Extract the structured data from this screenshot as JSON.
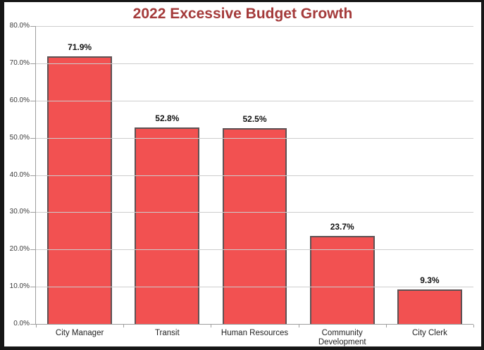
{
  "chart_data": {
    "type": "bar",
    "title": "2022 Excessive Budget Growth",
    "categories": [
      "City Manager",
      "Transit",
      "Human Resources",
      "Community Development",
      "City Clerk"
    ],
    "values": [
      71.9,
      52.8,
      52.5,
      23.7,
      9.3
    ],
    "value_labels": [
      "71.9%",
      "52.8%",
      "52.5%",
      "23.7%",
      "9.3%"
    ],
    "xlabel": "",
    "ylabel": "",
    "ylim": [
      0,
      80
    ],
    "ytick_step": 10,
    "ytick_labels": [
      "80.0%",
      "70.0%",
      "60.0%",
      "50.0%",
      "40.0%",
      "30.0%",
      "20.0%",
      "10.0%",
      "0.0%"
    ],
    "grid": "horizontal-major",
    "legend": "none",
    "colors": {
      "title": "#A43A3A",
      "bar_fill": "#F25151",
      "bar_border": "#5E5254",
      "gridline": "#CDCDCD",
      "axis": "#9E9E9E",
      "tick": "#9E9E9E",
      "value_label": "#111111",
      "ytick_label": "#3A3A3A",
      "xtick_label": "#222222",
      "frame_border": "#161616"
    }
  }
}
